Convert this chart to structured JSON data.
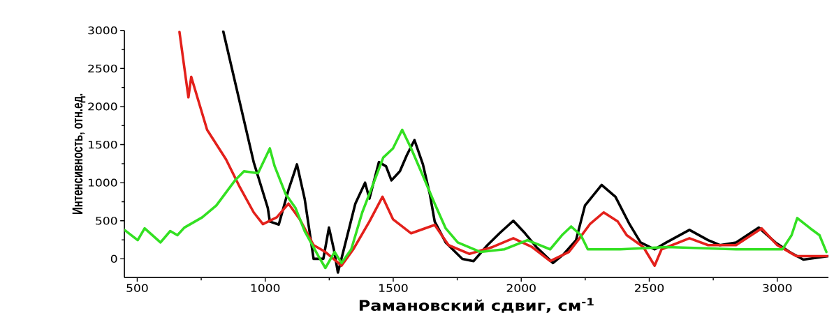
{
  "chart_data": {
    "type": "line",
    "xlabel": "Рамановский сдвиг, см$^{-1}$",
    "ylabel": "Интенсивность, отн.ед.",
    "xlim": [
      450,
      3200
    ],
    "ylim": [
      -245,
      3000
    ],
    "xticks": [
      500,
      1000,
      1500,
      2000,
      2500,
      3000
    ],
    "yticks": [
      0,
      500,
      1000,
      1500,
      2000,
      2500,
      3000
    ],
    "grid": false,
    "legend": false,
    "marker": "none",
    "line_style": "solid",
    "series": [
      {
        "color": "#000000",
        "x": [
          836,
          955,
          1010,
          1018,
          1053,
          1091,
          1124,
          1154,
          1189,
          1227,
          1249,
          1268,
          1284,
          1309,
          1352,
          1390,
          1407,
          1444,
          1472,
          1493,
          1526,
          1553,
          1583,
          1616,
          1643,
          1662,
          1705,
          1770,
          1814,
          1868,
          1915,
          1969,
          2015,
          2059,
          2124,
          2167,
          2214,
          2249,
          2314,
          2368,
          2423,
          2466,
          2521,
          2567,
          2657,
          2730,
          2776,
          2839,
          2928,
          2993,
          3048,
          3102,
          3200
        ],
        "values": [
          2990,
          1270,
          670,
          490,
          450,
          907,
          1240,
          790,
          0,
          0,
          410,
          125,
          -180,
          150,
          725,
          1000,
          790,
          1270,
          1215,
          1030,
          1150,
          1360,
          1560,
          1240,
          850,
          490,
          215,
          0,
          -30,
          180,
          335,
          500,
          335,
          155,
          -55,
          65,
          245,
          700,
          970,
          815,
          455,
          215,
          125,
          215,
          380,
          245,
          180,
          215,
          410,
          215,
          90,
          -10,
          35
        ]
      },
      {
        "color": "#e3201b",
        "x": [
          665,
          700,
          711,
          773,
          847,
          901,
          955,
          991,
          1045,
          1091,
          1135,
          1189,
          1235,
          1298,
          1344,
          1407,
          1458,
          1499,
          1570,
          1662,
          1716,
          1798,
          1888,
          1969,
          2042,
          2113,
          2186,
          2222,
          2268,
          2322,
          2377,
          2412,
          2477,
          2521,
          2548,
          2657,
          2730,
          2839,
          2939,
          3000,
          3075,
          3195
        ],
        "values": [
          2980,
          2120,
          2390,
          1695,
          1305,
          940,
          610,
          455,
          545,
          725,
          520,
          180,
          90,
          -90,
          125,
          490,
          815,
          520,
          335,
          445,
          180,
          65,
          155,
          270,
          155,
          -30,
          90,
          245,
          455,
          610,
          490,
          310,
          155,
          -90,
          125,
          270,
          180,
          180,
          400,
          180,
          35,
          35
        ]
      },
      {
        "color": "#33e022",
        "x": [
          450,
          502,
          529,
          591,
          629,
          657,
          684,
          754,
          809,
          882,
          917,
          972,
          1018,
          1037,
          1080,
          1118,
          1154,
          1208,
          1235,
          1271,
          1298,
          1336,
          1379,
          1417,
          1461,
          1499,
          1535,
          1570,
          1616,
          1662,
          1705,
          1752,
          1841,
          1934,
          2024,
          2113,
          2159,
          2195,
          2233,
          2260,
          2386,
          2567,
          2839,
          3020,
          3056,
          3078,
          3129,
          3165,
          3192
        ],
        "values": [
          380,
          245,
          400,
          215,
          365,
          310,
          410,
          545,
          700,
          1030,
          1150,
          1125,
          1450,
          1215,
          850,
          670,
          365,
          35,
          -120,
          90,
          -55,
          125,
          610,
          940,
          1330,
          1450,
          1695,
          1450,
          1090,
          725,
          400,
          215,
          90,
          125,
          245,
          125,
          310,
          425,
          310,
          125,
          125,
          155,
          125,
          125,
          310,
          535,
          400,
          310,
          90
        ]
      }
    ]
  }
}
